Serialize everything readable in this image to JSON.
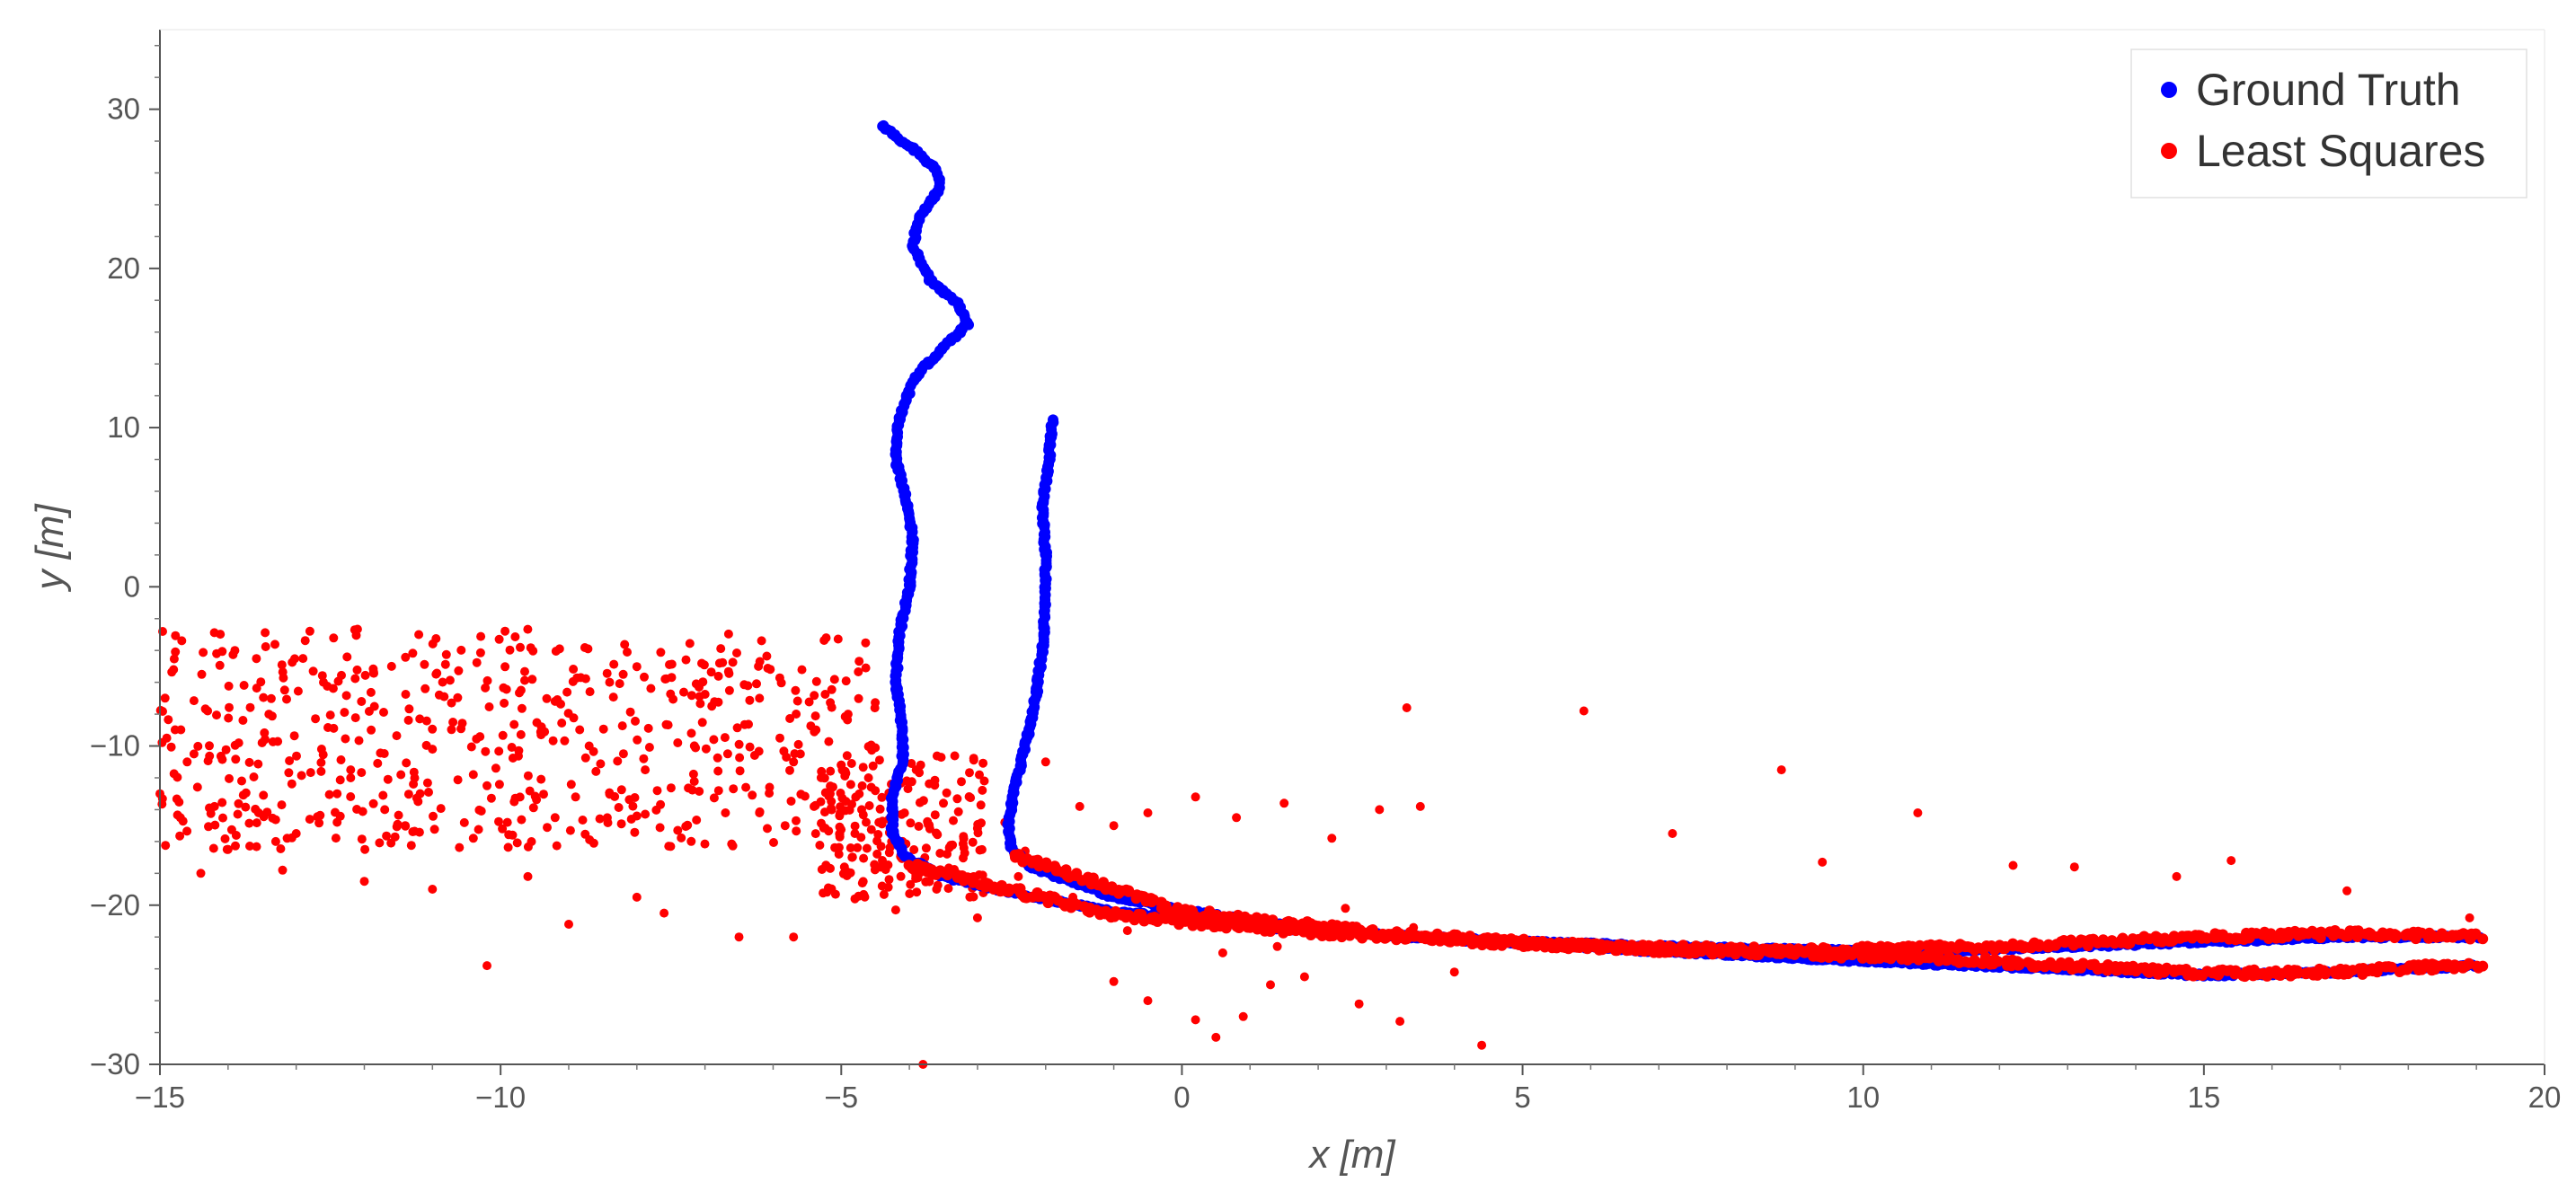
{
  "chart_data": {
    "type": "scatter",
    "title": "",
    "xlabel": "x [m]",
    "ylabel": "y [m]",
    "xlim": [
      -15,
      20
    ],
    "ylim": [
      -30,
      35
    ],
    "xticks": [
      -15,
      -10,
      -5,
      0,
      5,
      10,
      15,
      20
    ],
    "yticks": [
      -30,
      -20,
      -10,
      0,
      10,
      20,
      30
    ],
    "xtick_labels": [
      "−15",
      "−10",
      "−5",
      "0",
      "5",
      "10",
      "15",
      "20"
    ],
    "ytick_labels": [
      "−30",
      "−20",
      "−10",
      "0",
      "10",
      "20",
      "30"
    ],
    "grid": false,
    "legend_position": "top-right",
    "series": [
      {
        "name": "Ground Truth",
        "color": "#0000ff",
        "x": [
          -4.4,
          -4.2,
          -3.95,
          -3.6,
          -3.55,
          -3.85,
          -3.95,
          -3.7,
          -3.3,
          -3.15,
          -3.55,
          -3.95,
          -4.15,
          -4.2,
          -4.05,
          -3.95,
          -4.0,
          -4.15,
          -4.2,
          -4.1,
          -4.1,
          -4.25,
          -4.25,
          -4.05,
          -3.5,
          -2.5,
          -1.0,
          1.0,
          3.0,
          5.0,
          7.0,
          9.0,
          11.0,
          13.0,
          15.0,
          17.0,
          19.1
        ],
        "y": [
          29,
          28.3,
          27.5,
          26.2,
          25.0,
          23.3,
          21.5,
          19.3,
          17.8,
          16.5,
          14.8,
          13.0,
          10.5,
          8.0,
          5.5,
          3.0,
          0.0,
          -3.0,
          -6.0,
          -9.0,
          -11.0,
          -13.0,
          -15.5,
          -17.0,
          -18.2,
          -19.2,
          -20.4,
          -21.3,
          -21.9,
          -22.3,
          -22.6,
          -22.8,
          -22.9,
          -22.6,
          -22.3,
          -22.0,
          -22.0
        ],
        "x2": [
          -1.9,
          -1.95,
          -2.05,
          -2.0,
          -2.0,
          -2.05,
          -2.15,
          -2.3,
          -2.45,
          -2.55,
          -2.5,
          -2.2,
          -1.0,
          1.0,
          3.0,
          5.0,
          7.0,
          9.0,
          11.0,
          13.0,
          15.0,
          17.0,
          19.0
        ],
        "y2": [
          10.5,
          8.0,
          5.0,
          2.0,
          -1.0,
          -4.0,
          -7.0,
          -10.0,
          -12.5,
          -15.0,
          -16.5,
          -17.6,
          -19.5,
          -21.0,
          -21.9,
          -22.4,
          -22.9,
          -23.3,
          -23.7,
          -24.0,
          -24.4,
          -24.2,
          -23.8
        ]
      },
      {
        "name": "Least Squares",
        "color": "#ff0000",
        "x": [
          -4.0,
          -1.0,
          1.0,
          3.0,
          5.0,
          7.0,
          9.0,
          11.0,
          13.0,
          15.0,
          17.0,
          19.1
        ],
        "y": [
          -17.5,
          -20.6,
          -21.4,
          -22.0,
          -22.4,
          -22.8,
          -23.0,
          -23.3,
          -23.8,
          -24.3,
          -24.2,
          -23.7
        ],
        "x2": [
          -2.5,
          0.0,
          3.0,
          6.0,
          9.0,
          12.0,
          15.0,
          17.0,
          19.1
        ],
        "y2": [
          -16.8,
          -20.4,
          -21.8,
          -22.6,
          -22.9,
          -22.6,
          -22.0,
          -21.8,
          -22.0
        ],
        "scatter_x": [
          -14.8,
          -14.5,
          -14.2,
          -13.9,
          -13.5,
          -13.0,
          -12.6,
          -12.2,
          -11.7,
          -11.2,
          -10.7,
          -10.2,
          -9.7,
          -9.2,
          -8.7,
          -8.2,
          -7.7,
          -7.2,
          -6.7,
          -6.2,
          -5.7,
          -5.3,
          -4.9,
          -4.6,
          -14.7,
          -14.3,
          -13.8,
          -13.3,
          -12.9,
          -12.4,
          -11.9,
          -11.4,
          -10.9,
          -10.4,
          -9.9,
          -9.4,
          -8.9,
          -8.4,
          -7.9,
          -7.4,
          -6.9,
          -6.4,
          -5.9,
          -5.4,
          -5.0,
          -4.7,
          -14.6,
          -14.0,
          -13.4,
          -12.8,
          -12.2,
          -11.6,
          -11.0,
          -10.4,
          -9.8,
          -9.2,
          -8.6,
          -8.0,
          -7.4,
          -6.8,
          -6.2,
          -5.6,
          -5.2,
          -4.8,
          -4.5,
          -4.3,
          -4.1,
          -3.9,
          -3.7,
          -3.5,
          -3.2,
          -2.9,
          -2.6,
          -2.3,
          -2.0,
          -1.5,
          -1.0,
          -0.5,
          0.2,
          0.8,
          1.5,
          2.2,
          2.9,
          3.3,
          3.5,
          5.9,
          7.2,
          8.8,
          9.4,
          10.8,
          12.2,
          13.1,
          14.6,
          15.4,
          17.1,
          18.9,
          -10.2,
          -9.0,
          -8.0,
          -6.5,
          0.5,
          0.9,
          1.3,
          1.8,
          2.6,
          3.2,
          4.4,
          -1.0,
          -0.5,
          0.2,
          -3.8,
          -15.0,
          -14.9,
          -14.4,
          -13.2,
          -12.0,
          -11.0,
          -9.6,
          -7.6,
          -5.7,
          -4.8,
          -4.4,
          -4.2,
          -3.6,
          -3.0,
          -2.4,
          -1.6,
          -0.8,
          0.6,
          1.4,
          2.4,
          3.4,
          4.0
        ],
        "scatter_y": [
          -5.2,
          -10.5,
          -13.8,
          -4.0,
          -9.8,
          -15.5,
          -6.0,
          -11.5,
          -14.0,
          -3.0,
          -8.5,
          -12.5,
          -6.5,
          -14.5,
          -10.0,
          -5.5,
          -12.8,
          -9.2,
          -14.2,
          -7.0,
          -11.0,
          -13.5,
          -8.0,
          -12.0,
          -14.5,
          -7.8,
          -12.2,
          -16.0,
          -4.5,
          -13.0,
          -9.0,
          -15.0,
          -6.8,
          -11.8,
          -14.8,
          -8.8,
          -13.2,
          -6.0,
          -10.8,
          -15.3,
          -7.5,
          -12.6,
          -9.5,
          -13.8,
          -11.2,
          -14.0,
          -11.0,
          -16.5,
          -8.0,
          -14.6,
          -12.0,
          -5.0,
          -10.2,
          -15.8,
          -13.5,
          -7.2,
          -11.6,
          -14.4,
          -9.8,
          -12.8,
          -14.2,
          -10.5,
          -13.0,
          -15.5,
          -12.8,
          -14.6,
          -16.0,
          -11.5,
          -15.2,
          -13.6,
          -16.4,
          -12.2,
          -14.8,
          -16.6,
          -11.0,
          -13.8,
          -15.0,
          -14.2,
          -13.2,
          -14.5,
          -13.6,
          -15.8,
          -14.0,
          -7.6,
          -13.8,
          -7.8,
          -15.5,
          -11.5,
          -17.3,
          -14.2,
          -17.5,
          -17.6,
          -18.2,
          -17.2,
          -19.1,
          -20.8,
          -23.8,
          -21.2,
          -19.5,
          -22.0,
          -28.3,
          -27.0,
          -25.0,
          -24.5,
          -26.2,
          -27.3,
          -28.8,
          -24.8,
          -26.0,
          -27.2,
          -30.0,
          -13.0,
          -9.5,
          -18.0,
          -17.8,
          -18.5,
          -19.0,
          -18.2,
          -20.5,
          -22.0,
          -19.6,
          -18.8,
          -20.3,
          -19.0,
          -20.8,
          -18.2,
          -19.5,
          -21.6,
          -23.0,
          -22.6,
          -20.2,
          -21.4,
          -24.2
        ]
      }
    ]
  }
}
